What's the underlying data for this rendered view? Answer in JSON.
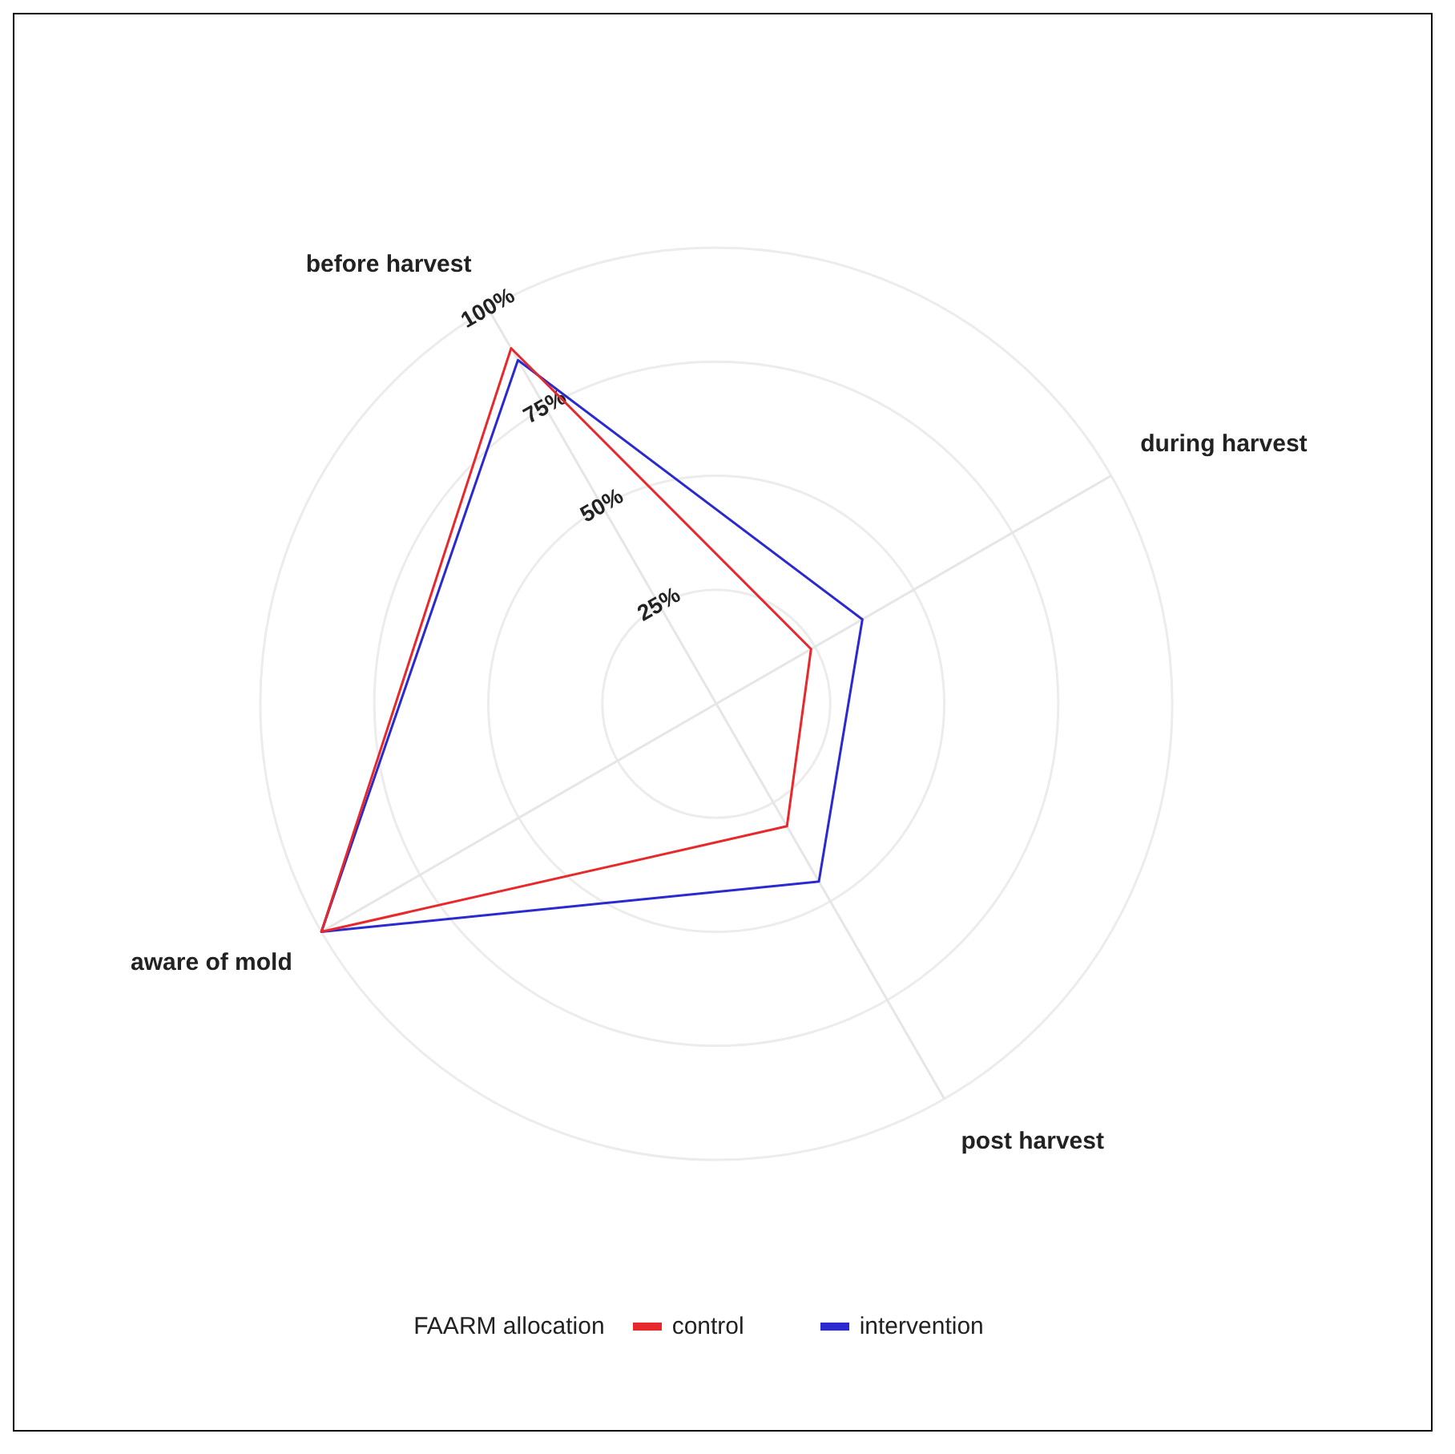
{
  "chart_data": {
    "type": "radar",
    "categories": [
      "before harvest",
      "during harvest",
      "post harvest",
      "aware of mold"
    ],
    "series": [
      {
        "name": "control",
        "color": "#e8292b",
        "values": [
          90,
          24,
          31,
          100
        ]
      },
      {
        "name": "intervention",
        "color": "#2a2ad0",
        "values": [
          87,
          37,
          45,
          100
        ]
      }
    ],
    "ylim": [
      0,
      100
    ],
    "yticks": [
      {
        "value": 25,
        "label": "25%"
      },
      {
        "value": 50,
        "label": "50%"
      },
      {
        "value": 75,
        "label": "75%"
      },
      {
        "value": 100,
        "label": "100%"
      }
    ],
    "legend": "bottom",
    "legend_title": "FAARM allocation",
    "grid": true,
    "marker": "none"
  }
}
